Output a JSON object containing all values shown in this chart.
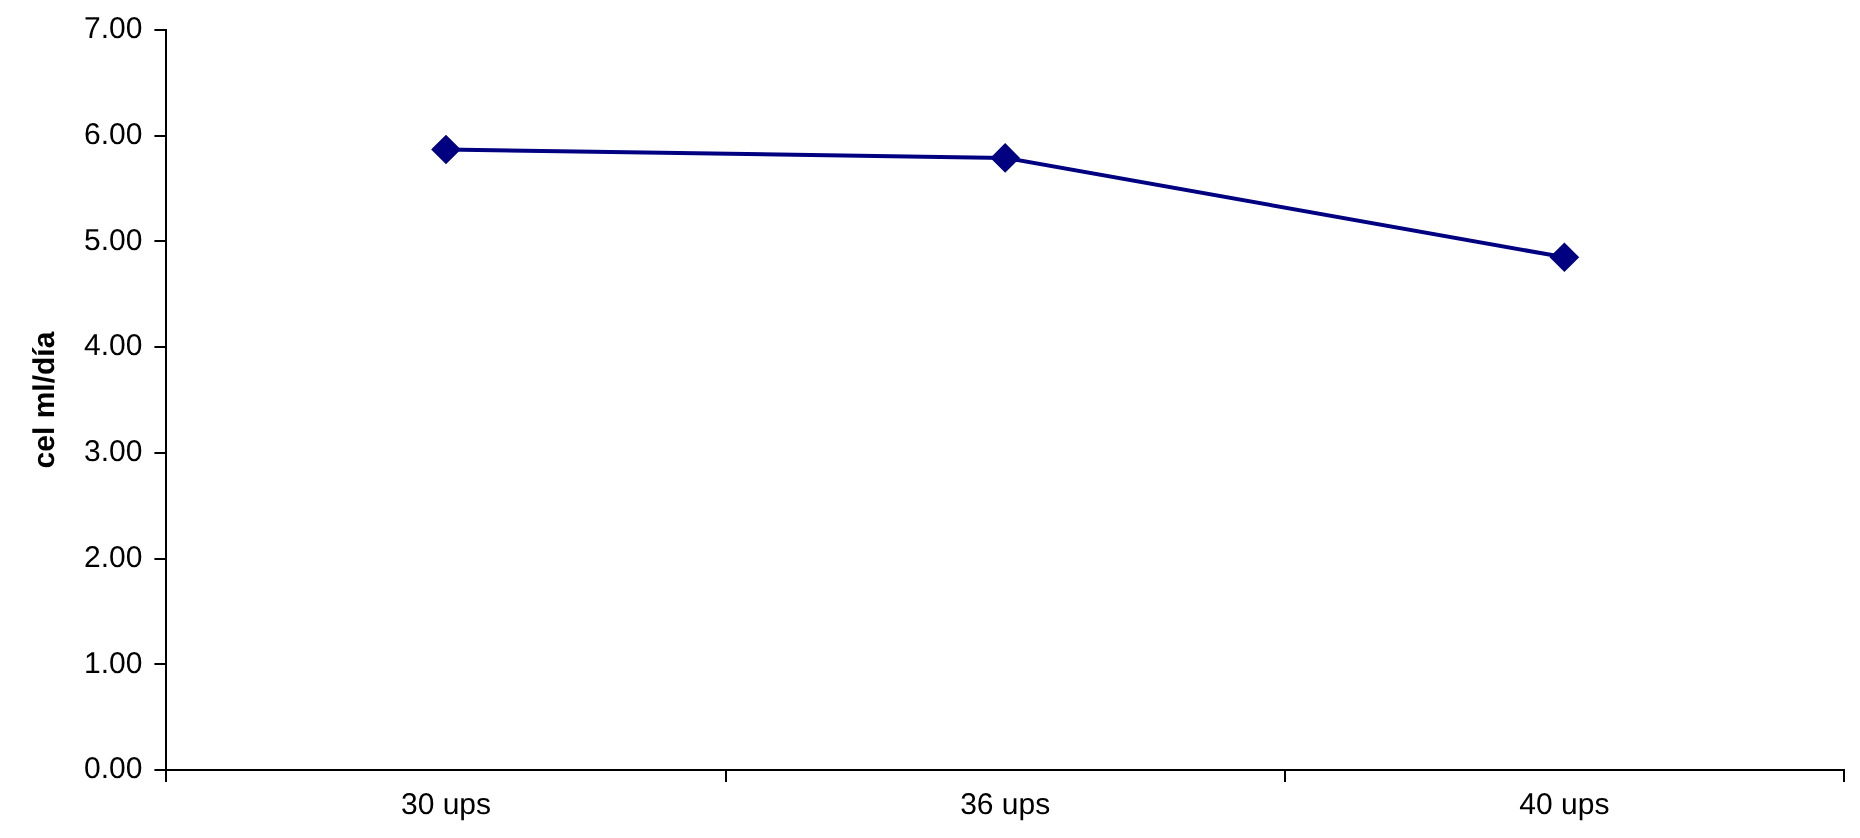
{
  "chart_data": {
    "type": "line",
    "ylabel": "cel ml/día",
    "categories": [
      "30 ups",
      "36 ups",
      "40 ups"
    ],
    "series": [
      {
        "color": "#000080",
        "values": [
          5.87,
          5.79,
          4.85
        ]
      }
    ],
    "ylim": [
      0,
      7
    ],
    "yticks": [
      {
        "value": 0,
        "label": "0.00"
      },
      {
        "value": 1,
        "label": "1.00"
      },
      {
        "value": 2,
        "label": "2.00"
      },
      {
        "value": 3,
        "label": "3.00"
      },
      {
        "value": 4,
        "label": "4.00"
      },
      {
        "value": 5,
        "label": "5.00"
      },
      {
        "value": 6,
        "label": "6.00"
      },
      {
        "value": 7,
        "label": "7.00"
      }
    ],
    "marker": "diamond",
    "line_style": "solid",
    "grid": false,
    "legend": false
  }
}
